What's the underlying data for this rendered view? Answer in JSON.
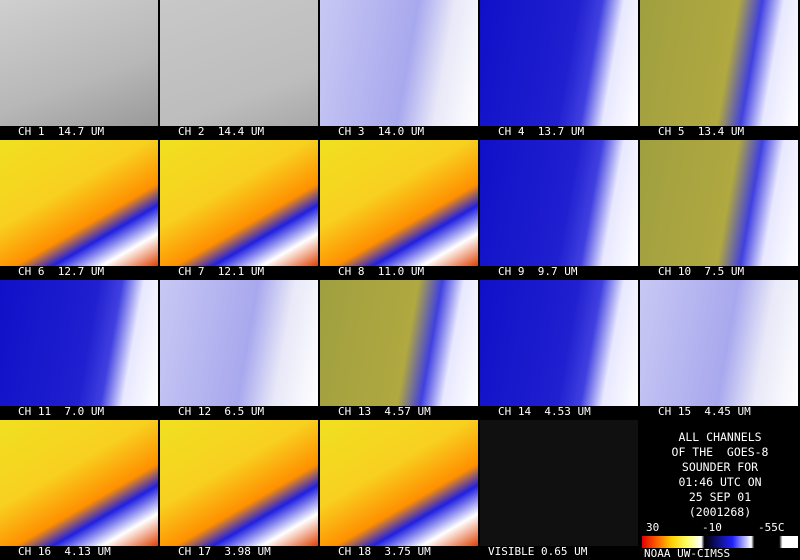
{
  "panels": [
    {
      "label": "CH 1  14.7 UM"
    },
    {
      "label": "CH 2  14.4 UM"
    },
    {
      "label": "CH 3  14.0 UM"
    },
    {
      "label": "CH 4  13.7 UM"
    },
    {
      "label": "CH 5  13.4 UM"
    },
    {
      "label": "CH 6  12.7 UM"
    },
    {
      "label": "CH 7  12.1 UM"
    },
    {
      "label": "CH 8  11.0 UM"
    },
    {
      "label": "CH 9  9.7 UM"
    },
    {
      "label": "CH 10  7.5 UM"
    },
    {
      "label": "CH 11  7.0 UM"
    },
    {
      "label": "CH 12  6.5 UM"
    },
    {
      "label": "CH 13  4.57 UM"
    },
    {
      "label": "CH 14  4.53 UM"
    },
    {
      "label": "CH 15  4.45 UM"
    },
    {
      "label": "CH 16  4.13 UM"
    },
    {
      "label": "CH 17  3.98 UM"
    },
    {
      "label": "CH 18  3.75 UM"
    },
    {
      "label": "VISIBLE 0.65 UM"
    }
  ],
  "info": {
    "lines": [
      "ALL CHANNELS",
      "OF THE  GOES-8",
      "SOUNDER FOR",
      "01:46 UTC ON",
      "25 SEP 01",
      "(2001268)"
    ],
    "scale_labels": [
      "30",
      "-10",
      "-55C"
    ],
    "credit": "NOAA UW-CIMSS"
  }
}
